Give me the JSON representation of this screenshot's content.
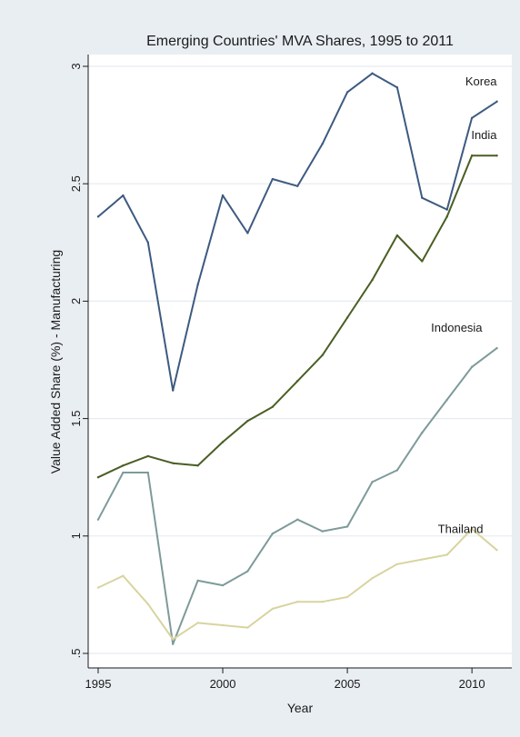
{
  "chart_data": {
    "type": "line",
    "title": "Emerging Countries' MVA Shares, 1995 to 2011",
    "xlabel": "Year",
    "ylabel": "Value Added Share (%) - Manufacturing",
    "xlim": [
      1995,
      2011
    ],
    "ylim": [
      0.5,
      3.0
    ],
    "x_ticks": [
      1995,
      2000,
      2005,
      2010
    ],
    "y_ticks": [
      0.5,
      1.0,
      1.5,
      2.0,
      2.5,
      3.0
    ],
    "y_tick_labels": [
      ".5",
      "1",
      "1.5",
      "2",
      "2.5",
      "3"
    ],
    "grid": true,
    "legend": "inline labels at line ends",
    "x": [
      1995,
      1996,
      1997,
      1998,
      1999,
      2000,
      2001,
      2002,
      2003,
      2004,
      2005,
      2006,
      2007,
      2008,
      2009,
      2010,
      2011
    ],
    "series": [
      {
        "name": "Korea",
        "color": "#3d5a80",
        "values": [
          2.36,
          2.45,
          2.25,
          1.62,
          2.07,
          2.45,
          2.29,
          2.52,
          2.49,
          2.67,
          2.89,
          2.97,
          2.91,
          2.44,
          2.39,
          2.78,
          2.85
        ]
      },
      {
        "name": "India",
        "color": "#4a5e23",
        "values": [
          1.25,
          1.3,
          1.34,
          1.31,
          1.3,
          1.4,
          1.49,
          1.55,
          1.66,
          1.77,
          1.93,
          2.09,
          2.28,
          2.17,
          2.36,
          2.62,
          2.62
        ]
      },
      {
        "name": "Indonesia",
        "color": "#7e9a9a",
        "values": [
          1.07,
          1.27,
          1.27,
          0.54,
          0.81,
          0.79,
          0.85,
          1.01,
          1.07,
          1.02,
          1.04,
          1.23,
          1.28,
          1.44,
          1.58,
          1.72,
          1.8
        ]
      },
      {
        "name": "Thailand",
        "color": "#d8d4a0",
        "values": [
          0.78,
          0.83,
          0.71,
          0.56,
          0.63,
          0.62,
          0.61,
          0.69,
          0.72,
          0.72,
          0.74,
          0.82,
          0.88,
          0.9,
          0.92,
          1.03,
          0.94
        ]
      }
    ]
  }
}
